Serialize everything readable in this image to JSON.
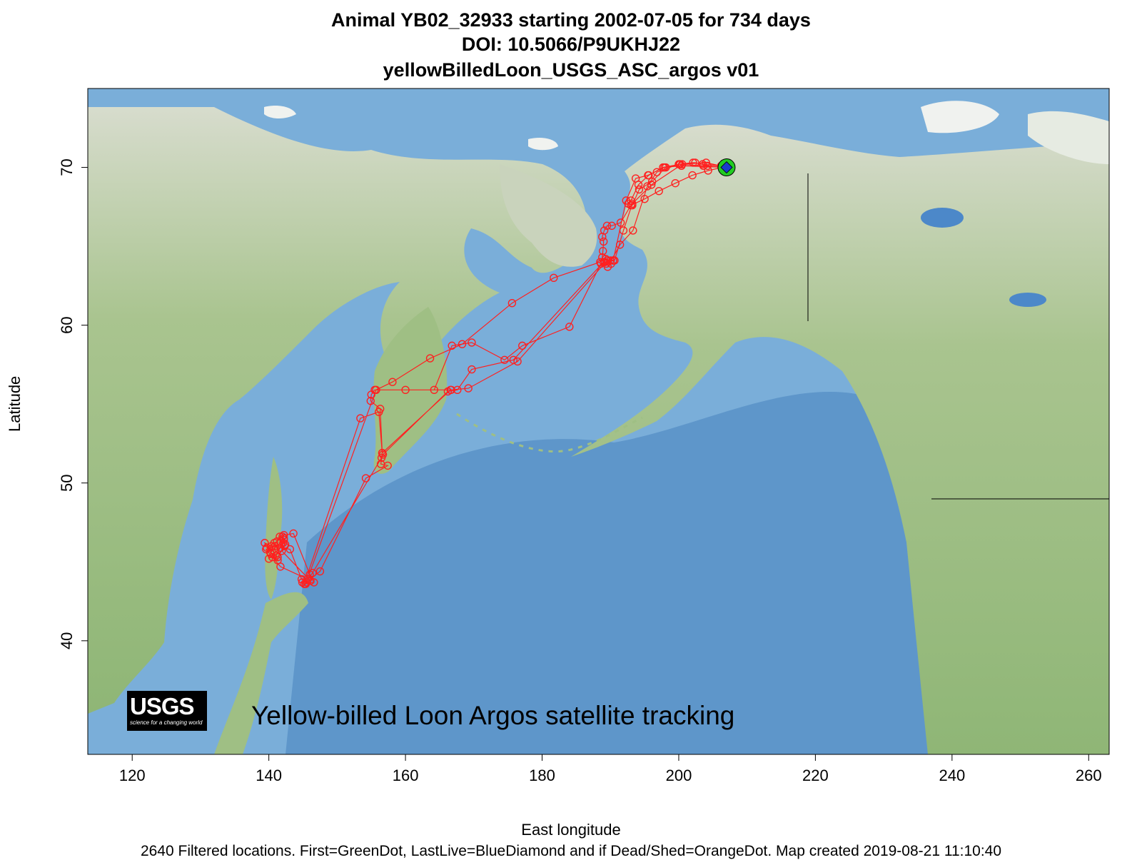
{
  "title": {
    "line1": "Animal  YB02_32933 starting  2002-07-05 for 734 days",
    "line2": "DOI: 10.5066/P9UKHJ22",
    "line3": "yellowBilledLoon_USGS_ASC_argos v01"
  },
  "axes": {
    "xlabel": "East longitude",
    "ylabel": "Latitude",
    "xlim": [
      113.5,
      263
    ],
    "ylim": [
      32.8,
      75
    ],
    "xticks": [
      120,
      140,
      160,
      180,
      200,
      220,
      240,
      260
    ],
    "yticks": [
      40,
      50,
      60,
      70
    ]
  },
  "overlay": {
    "logo_text": "USGS",
    "logo_tagline": "science for a changing world",
    "map_label": "Yellow-billed Loon Argos satellite tracking"
  },
  "footer": "2640 Filtered locations. First=GreenDot, LastLive=BlueDiamond and if Dead/Shed=OrangeDot. Map created  2019-08-21 11:10:40",
  "colors": {
    "ocean": "#7aaed9",
    "deep_ocean": "#5b93c8",
    "land": "#9fbf84",
    "tundra": "#cfd6c4",
    "ice": "#f0f2ef",
    "track": "#ff2020",
    "first_dot": "#22cc22",
    "last_diamond": "#1a3ccc"
  },
  "chart_data": {
    "type": "scatter",
    "series": [
      {
        "name": "track",
        "x": [
          207.0,
          204.2,
          202.4,
          200.2,
          197.7,
          195.6,
          194.1,
          193.0,
          192.6,
          193.2,
          194.2,
          196.1,
          198.1,
          200.0,
          202.1,
          203.5,
          206.2,
          207.0,
          200.4,
          197.9,
          195.5,
          193.7,
          192.3,
          190.4,
          189.2,
          188.6,
          184.0,
          177.1,
          174.5,
          169.7,
          166.8,
          164.2,
          166.7,
          160.0,
          155.5,
          155.0,
          154.9,
          156.3,
          156.6,
          156.4,
          157.4,
          154.2,
          147.5,
          145.5,
          144.8,
          143.1,
          141.7,
          140.4,
          139.4,
          140.2,
          141.3,
          141.1,
          142.2,
          142.4,
          141.3,
          140.3,
          140.8,
          141.4,
          140.0,
          141.7,
          142.0,
          142.1,
          141.9,
          146.1,
          144.9,
          145.4,
          155.7,
          158.1,
          163.6,
          168.3,
          175.6,
          181.7,
          188.5,
          189.3,
          190.0,
          190.4,
          189.4,
          188.8,
          188.9,
          189.0,
          188.8,
          189.1,
          189.5,
          190.2,
          191.5,
          193.0,
          195.0,
          197.1,
          199.5,
          202.0,
          204.3,
          206.4,
          207.1,
          204.0,
          200.5,
          196.0,
          193.2,
          191.9,
          190.6,
          189.0,
          175.8,
          169.7,
          167.6,
          166.2,
          156.7,
          156.5,
          146.4,
          145.7,
          141.7,
          140.5,
          139.6,
          140.9,
          142.3,
          142.2,
          141.6,
          140.2,
          139.7,
          141.2,
          142.2,
          143.6,
          146.0,
          146.6,
          145.2,
          153.4,
          156.1,
          156.6,
          166.6,
          169.2,
          176.4,
          189.5,
          190.1,
          189.6,
          191.4,
          193.3,
          195.4,
          196.8,
          200.1,
          203.6,
          207.0
        ]
      },
      {
        "name": "first",
        "x": [
          207.0
        ]
      },
      {
        "name": "last",
        "x": [
          207.0
        ]
      }
    ],
    "y_track": [
      70.0,
      70.1,
      70.3,
      70.2,
      70.0,
      69.5,
      68.9,
      67.9,
      67.7,
      67.6,
      68.6,
      69.1,
      70.0,
      70.2,
      70.3,
      70.2,
      70.1,
      70.0,
      70.1,
      70.0,
      69.5,
      69.3,
      67.9,
      64.1,
      64.0,
      63.9,
      59.9,
      58.7,
      57.8,
      58.9,
      58.7,
      55.9,
      55.9,
      55.9,
      55.9,
      55.6,
      55.2,
      54.7,
      51.9,
      51.2,
      51.1,
      50.3,
      44.4,
      43.7,
      43.9,
      45.8,
      45.9,
      46.0,
      46.2,
      45.6,
      45.1,
      45.4,
      46.4,
      46.1,
      45.3,
      45.5,
      46.2,
      45.8,
      45.2,
      45.9,
      46.6,
      46.2,
      45.7,
      43.8,
      43.7,
      43.6,
      55.9,
      56.4,
      57.9,
      58.8,
      61.4,
      63.0,
      64.0,
      64.2,
      64.1,
      64.1,
      63.9,
      64.3,
      64.7,
      65.3,
      65.6,
      66.0,
      66.3,
      66.3,
      66.5,
      67.6,
      68.0,
      68.5,
      69.0,
      69.5,
      69.8,
      70.0,
      70.0,
      70.3,
      70.2,
      68.9,
      67.7,
      66.0,
      64.1,
      64.0,
      57.8,
      57.2,
      55.9,
      55.8,
      51.8,
      51.6,
      44.3,
      43.9,
      44.7,
      45.3,
      45.8,
      46.0,
      46.0,
      46.5,
      46.6,
      45.6,
      45.9,
      46.3,
      46.7,
      46.8,
      44.2,
      43.7,
      43.6,
      54.1,
      54.5,
      51.9,
      55.9,
      56.0,
      57.7,
      64.1,
      63.9,
      63.7,
      65.1,
      66.0,
      68.8,
      69.7,
      70.2,
      70.1,
      70.0
    ],
    "first_point": {
      "x": 207.0,
      "y": 70.0
    },
    "last_point": {
      "x": 207.0,
      "y": 70.0
    }
  }
}
